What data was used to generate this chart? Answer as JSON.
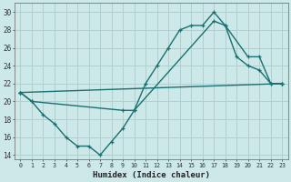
{
  "xlabel": "Humidex (Indice chaleur)",
  "background_color": "#cce8e8",
  "grid_color": "#b0d0d0",
  "line_color": "#1a7070",
  "xlim": [
    -0.5,
    23.5
  ],
  "ylim": [
    13.5,
    31
  ],
  "yticks": [
    14,
    16,
    18,
    20,
    22,
    24,
    26,
    28,
    30
  ],
  "xticks": [
    0,
    1,
    2,
    3,
    4,
    5,
    6,
    7,
    8,
    9,
    10,
    11,
    12,
    13,
    14,
    15,
    16,
    17,
    18,
    19,
    20,
    21,
    22,
    23
  ],
  "line1_x": [
    0,
    1,
    2,
    3,
    4,
    5,
    6,
    7,
    8,
    9,
    10,
    11,
    12,
    13,
    14,
    15,
    16,
    17,
    18,
    19,
    20,
    21,
    22,
    23
  ],
  "line1_y": [
    21,
    20,
    18.5,
    17.5,
    16,
    15,
    15,
    14,
    15.5,
    17,
    19,
    22,
    24,
    26,
    28,
    28.5,
    28.5,
    30,
    28.5,
    25,
    24,
    23.5,
    22,
    22
  ],
  "line2_x": [
    0,
    1,
    9,
    10,
    17,
    18,
    20,
    21,
    22,
    23
  ],
  "line2_y": [
    21,
    20,
    19,
    19,
    29,
    28.5,
    25,
    25,
    22,
    22
  ],
  "line3_x": [
    0,
    23
  ],
  "line3_y": [
    21,
    22
  ],
  "marker_size": 3.0,
  "line_width": 1.0
}
